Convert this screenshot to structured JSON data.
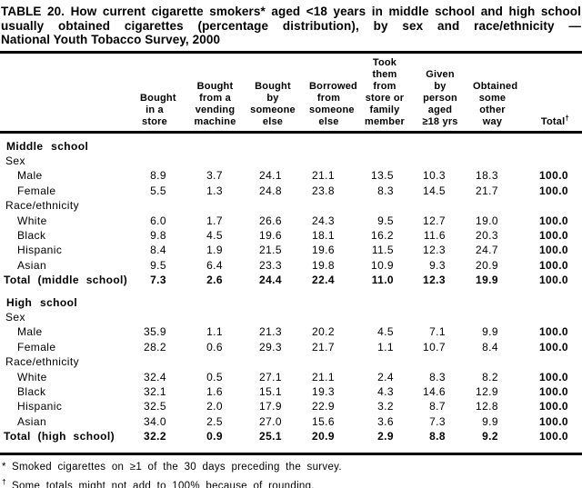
{
  "title_lines": [
    "TABLE 20. How current cigarette smokers* aged <18 years in middle school and high school",
    "usually obtained cigarettes (percentage distribution), by sex and race/ethnicity —",
    "National Youth Tobacco Survey, 2000"
  ],
  "table": {
    "column_headers": [
      "Bought\nin a\nstore",
      "Bought\nfrom a\nvending\nmachine",
      "Bought\nby\nsomeone\nelse",
      "Borrowed\nfrom\nsomeone\nelse",
      "Took\nthem from\nstore or\nfamily\nmember",
      "Given\nby\nperson\naged\n≥18 yrs",
      "Obtained\nsome\nother\nway"
    ],
    "total_header": {
      "label": "Total",
      "marker": "†"
    },
    "rows": [
      {
        "type": "section",
        "label": "Middle school"
      },
      {
        "type": "group",
        "label": "Sex"
      },
      {
        "type": "data",
        "label": "Male",
        "values": [
          "8.9",
          "3.7",
          "24.1",
          "21.1",
          "13.5",
          "10.3",
          "18.3"
        ],
        "total": "100.0"
      },
      {
        "type": "data",
        "label": "Female",
        "values": [
          "5.5",
          "1.3",
          "24.8",
          "23.8",
          "8.3",
          "14.5",
          "21.7"
        ],
        "total": "100.0"
      },
      {
        "type": "group",
        "label": "Race/ethnicity"
      },
      {
        "type": "data",
        "label": "White",
        "values": [
          "6.0",
          "1.7",
          "26.6",
          "24.3",
          "9.5",
          "12.7",
          "19.0"
        ],
        "total": "100.0"
      },
      {
        "type": "data",
        "label": "Black",
        "values": [
          "9.8",
          "4.5",
          "19.6",
          "18.1",
          "16.2",
          "11.6",
          "20.3"
        ],
        "total": "100.0"
      },
      {
        "type": "data",
        "label": "Hispanic",
        "values": [
          "8.4",
          "1.9",
          "21.5",
          "19.6",
          "11.5",
          "12.3",
          "24.7"
        ],
        "total": "100.0"
      },
      {
        "type": "data",
        "label": "Asian",
        "values": [
          "9.5",
          "6.4",
          "23.3",
          "19.8",
          "10.9",
          "9.3",
          "20.9"
        ],
        "total": "100.0"
      },
      {
        "type": "total",
        "label": "Total (middle school)",
        "values": [
          "7.3",
          "2.6",
          "24.4",
          "22.4",
          "11.0",
          "12.3",
          "19.9"
        ],
        "total": "100.0"
      },
      {
        "type": "section",
        "label": "High school",
        "gap_before": true
      },
      {
        "type": "group",
        "label": "Sex"
      },
      {
        "type": "data",
        "label": "Male",
        "values": [
          "35.9",
          "1.1",
          "21.3",
          "20.2",
          "4.5",
          "7.1",
          "9.9"
        ],
        "total": "100.0"
      },
      {
        "type": "data",
        "label": "Female",
        "values": [
          "28.2",
          "0.6",
          "29.3",
          "21.7",
          "1.1",
          "10.7",
          "8.4"
        ],
        "total": "100.0"
      },
      {
        "type": "group",
        "label": "Race/ethnicity"
      },
      {
        "type": "data",
        "label": "White",
        "values": [
          "32.4",
          "0.5",
          "27.1",
          "21.1",
          "2.4",
          "8.3",
          "8.2"
        ],
        "total": "100.0"
      },
      {
        "type": "data",
        "label": "Black",
        "values": [
          "32.1",
          "1.6",
          "15.1",
          "19.3",
          "4.3",
          "14.6",
          "12.9"
        ],
        "total": "100.0"
      },
      {
        "type": "data",
        "label": "Hispanic",
        "values": [
          "32.5",
          "2.0",
          "17.9",
          "22.9",
          "3.2",
          "8.7",
          "12.8"
        ],
        "total": "100.0"
      },
      {
        "type": "data",
        "label": "Asian",
        "values": [
          "34.0",
          "2.5",
          "27.0",
          "15.6",
          "3.6",
          "7.3",
          "9.9"
        ],
        "total": "100.0"
      },
      {
        "type": "total",
        "label": "Total (high school)",
        "values": [
          "32.2",
          "0.9",
          "25.1",
          "20.9",
          "2.9",
          "8.8",
          "9.2"
        ],
        "total": "100.0"
      }
    ]
  },
  "footnotes": [
    {
      "marker": "*",
      "text": "Smoked cigarettes on ≥1 of the 30 days preceding the survey."
    },
    {
      "marker": "†",
      "text": "Some totals might not add to 100% because of rounding."
    }
  ]
}
